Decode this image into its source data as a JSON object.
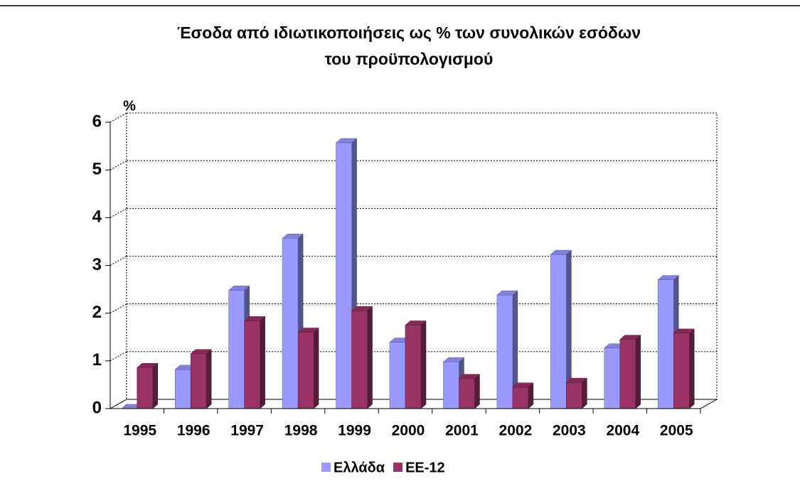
{
  "chart_data": {
    "type": "bar",
    "title": "Έσοδα από ιδιωτικοποιήσεις ως % των συνολικών εσόδων του προϋπολογισμού",
    "y_label": "%",
    "categories": [
      "1995",
      "1996",
      "1997",
      "1998",
      "1999",
      "2000",
      "2001",
      "2002",
      "2003",
      "2004",
      "2005"
    ],
    "series": [
      {
        "name": "Ελλάδα",
        "color": "#9999ff",
        "values": [
          0,
          0.82,
          2.48,
          3.57,
          5.57,
          1.39,
          0.98,
          2.38,
          3.23,
          1.27,
          2.7
        ]
      },
      {
        "name": "ΕΕ-12",
        "color": "#993366",
        "values": [
          0.86,
          1.15,
          1.84,
          1.6,
          2.05,
          1.75,
          0.63,
          0.45,
          0.55,
          1.45,
          1.58
        ]
      }
    ],
    "ylim": [
      0,
      6
    ],
    "yticks": [
      0,
      1,
      2,
      3,
      4,
      5,
      6
    ],
    "grid": true,
    "legend": "bottom"
  }
}
